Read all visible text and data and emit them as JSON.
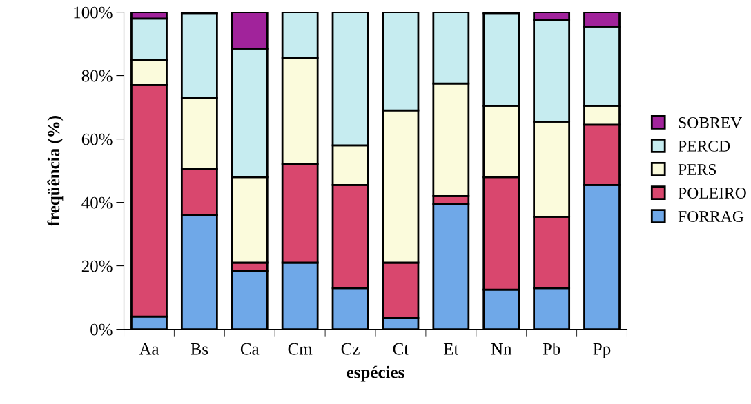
{
  "chart_data": {
    "type": "bar",
    "stacked": true,
    "xlabel": "espécies",
    "ylabel": "freqüência (%)",
    "categories": [
      "Aa",
      "Bs",
      "Ca",
      "Cm",
      "Cz",
      "Ct",
      "Et",
      "Nn",
      "Pb",
      "Pp"
    ],
    "series": [
      {
        "name": "FORRAG",
        "color": "#6fa8e8",
        "values": [
          4,
          36,
          18.5,
          21,
          13,
          3.5,
          39.5,
          12.5,
          13,
          45.5
        ]
      },
      {
        "name": "POLEIRO",
        "color": "#d9476e",
        "values": [
          73,
          14.5,
          2.5,
          31,
          32.5,
          17.5,
          2.5,
          35.5,
          22.5,
          19
        ]
      },
      {
        "name": "PERS",
        "color": "#fbfbdc",
        "values": [
          8,
          22.5,
          27,
          33.5,
          12.5,
          48,
          35.5,
          22.5,
          30,
          6
        ]
      },
      {
        "name": "PERCD",
        "color": "#c6ecf0",
        "values": [
          13,
          26.5,
          40.5,
          14.5,
          42,
          31,
          22.5,
          29,
          32,
          25
        ]
      },
      {
        "name": "SOBREV",
        "color": "#a1239b",
        "values": [
          2,
          0.5,
          11.5,
          null,
          null,
          null,
          null,
          0.5,
          2.5,
          4.5
        ]
      }
    ],
    "ylim": [
      0,
      100
    ],
    "yticks": [
      {
        "value": 0,
        "label": "0%"
      },
      {
        "value": 20,
        "label": "20%"
      },
      {
        "value": 40,
        "label": "40%"
      },
      {
        "value": 60,
        "label": "60%"
      },
      {
        "value": 80,
        "label": "80%"
      },
      {
        "value": 100,
        "label": "100%"
      }
    ],
    "legend": "right",
    "grid": false
  }
}
